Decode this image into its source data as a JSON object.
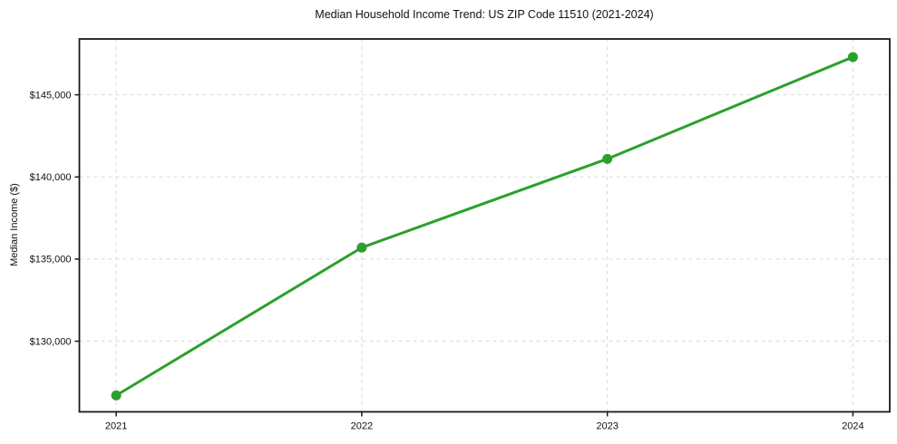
{
  "chart_data": {
    "type": "line",
    "title": "Median Household Income Trend: US ZIP Code 11510 (2021-2024)",
    "xlabel": "",
    "ylabel": "Median Income ($)",
    "categories": [
      2021,
      2022,
      2023,
      2024
    ],
    "x_tick_labels": [
      "2021",
      "2022",
      "2023",
      "2024"
    ],
    "series": [
      {
        "name": "Median Household Income",
        "values": [
          126700,
          135700,
          141100,
          147300
        ]
      }
    ],
    "y_ticks": [
      130000,
      135000,
      140000,
      145000
    ],
    "y_tick_labels": [
      "$130,000",
      "$135,000",
      "$140,000",
      "$145,000"
    ],
    "xlim": [
      2020.85,
      2024.15
    ],
    "ylim": [
      125700,
      148400
    ],
    "grid": true,
    "grid_style": "dashed",
    "legend_position": "none",
    "colors": {
      "line": "#2ca02c",
      "marker": "#2ca02c",
      "grid": "#d9d9d9",
      "spine": "#1a1a1a",
      "text": "#111111",
      "background": "#ffffff"
    }
  }
}
